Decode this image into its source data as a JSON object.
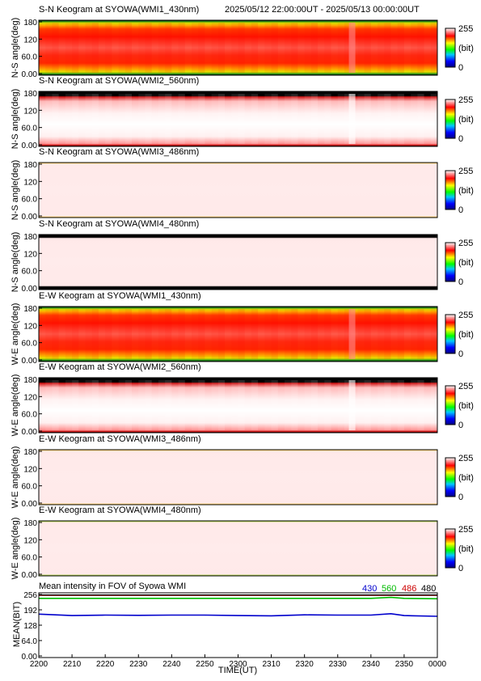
{
  "header": {
    "time_range": "2025/05/12 22:00:00UT - 2025/05/13 00:00:00UT"
  },
  "colorbar": {
    "max_label": "255",
    "unit_label": "(bit)",
    "min_label": "0"
  },
  "panels": [
    {
      "title": "S-N Keogram at SYOWA(WMI1_430nm)",
      "ylabel": "N-S angle(deg)",
      "style": "red_band"
    },
    {
      "title": "S-N Keogram at SYOWA(WMI2_560nm)",
      "ylabel": "N-S angle(deg)",
      "style": "white_sat"
    },
    {
      "title": "S-N Keogram at SYOWA(WMI3_486nm)",
      "ylabel": "N-S angle(deg)",
      "style": "faint"
    },
    {
      "title": "S-N Keogram at SYOWA(WMI4_480nm)",
      "ylabel": "N-S angle(deg)",
      "style": "faint_edge"
    },
    {
      "title": "E-W Keogram at SYOWA(WMI1_430nm)",
      "ylabel": "W-E angle(deg)",
      "style": "red_band"
    },
    {
      "title": "E-W Keogram at SYOWA(WMI2_560nm)",
      "ylabel": "W-E angle(deg)",
      "style": "white_sat"
    },
    {
      "title": "E-W Keogram at SYOWA(WMI3_486nm)",
      "ylabel": "W-E angle(deg)",
      "style": "faint"
    },
    {
      "title": "E-W Keogram at SYOWA(WMI4_480nm)",
      "ylabel": "W-E angle(deg)",
      "style": "faint_green_edge"
    }
  ],
  "keogram_yticks": [
    "0.00",
    "60.0",
    "120",
    "180"
  ],
  "mean_panel": {
    "title": "Mean intensity in FOV of Syowa WMI",
    "legend": [
      {
        "label": "430",
        "color": "#0000cc"
      },
      {
        "label": "560",
        "color": "#00bb00"
      },
      {
        "label": "486",
        "color": "#cc0000"
      },
      {
        "label": "480",
        "color": "#000000"
      }
    ],
    "ylabel": "MEAN(BIT)",
    "yticks": [
      "0.00",
      "64.0",
      "128",
      "192",
      "256"
    ]
  },
  "chart_data": {
    "type": "line",
    "title": "Mean intensity in FOV of Syowa WMI",
    "xlabel": "TIME(UT)",
    "ylabel": "MEAN(BIT)",
    "xlim": [
      0,
      120
    ],
    "ylim": [
      0,
      256
    ],
    "x_ticks": [
      "2200",
      "2210",
      "2220",
      "2230",
      "2240",
      "2250",
      "2300",
      "2310",
      "2320",
      "2330",
      "2340",
      "2350",
      "0000"
    ],
    "x": [
      0,
      10,
      20,
      30,
      40,
      50,
      60,
      70,
      80,
      90,
      100,
      106,
      110,
      120
    ],
    "series": [
      {
        "name": "430",
        "color": "#0000cc",
        "values": [
          174,
          168,
          170,
          169,
          170,
          170,
          168,
          167,
          171,
          170,
          170,
          176,
          168,
          165
        ]
      },
      {
        "name": "560",
        "color": "#00bb00",
        "values": [
          240,
          240,
          240,
          240,
          240,
          240,
          240,
          240,
          240,
          240,
          240,
          244,
          240,
          238
        ]
      },
      {
        "name": "486",
        "color": "#cc0000",
        "values": [
          252,
          252,
          252,
          252,
          252,
          252,
          252,
          252,
          252,
          252,
          252,
          252,
          252,
          252
        ]
      },
      {
        "name": "480",
        "color": "#000000",
        "values": [
          254,
          254,
          254,
          254,
          254,
          254,
          254,
          254,
          254,
          254,
          254,
          254,
          254,
          254
        ]
      }
    ]
  }
}
